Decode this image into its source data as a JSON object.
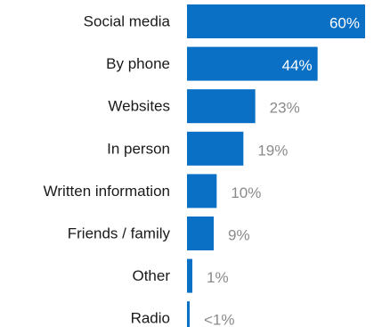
{
  "chart_data": {
    "type": "bar",
    "orientation": "horizontal",
    "title": "",
    "xlabel": "",
    "ylabel": "",
    "categories": [
      "Social media",
      "By phone",
      "Websites",
      "In person",
      "Written information",
      "Friends / family",
      "Other",
      "Radio"
    ],
    "values": [
      60,
      44,
      23,
      19,
      10,
      9,
      1,
      0.5
    ],
    "value_labels": [
      "60%",
      "44%",
      "23%",
      "19%",
      "10%",
      "9%",
      "1%",
      "<1%"
    ],
    "xlim": [
      0,
      60
    ],
    "grid": false,
    "legend": "none",
    "bar_color": "#0a70c5",
    "label_inside_color": "#ffffff",
    "label_outside_color": "#8a8a8a",
    "category_text_color": "#1a1a1a"
  }
}
